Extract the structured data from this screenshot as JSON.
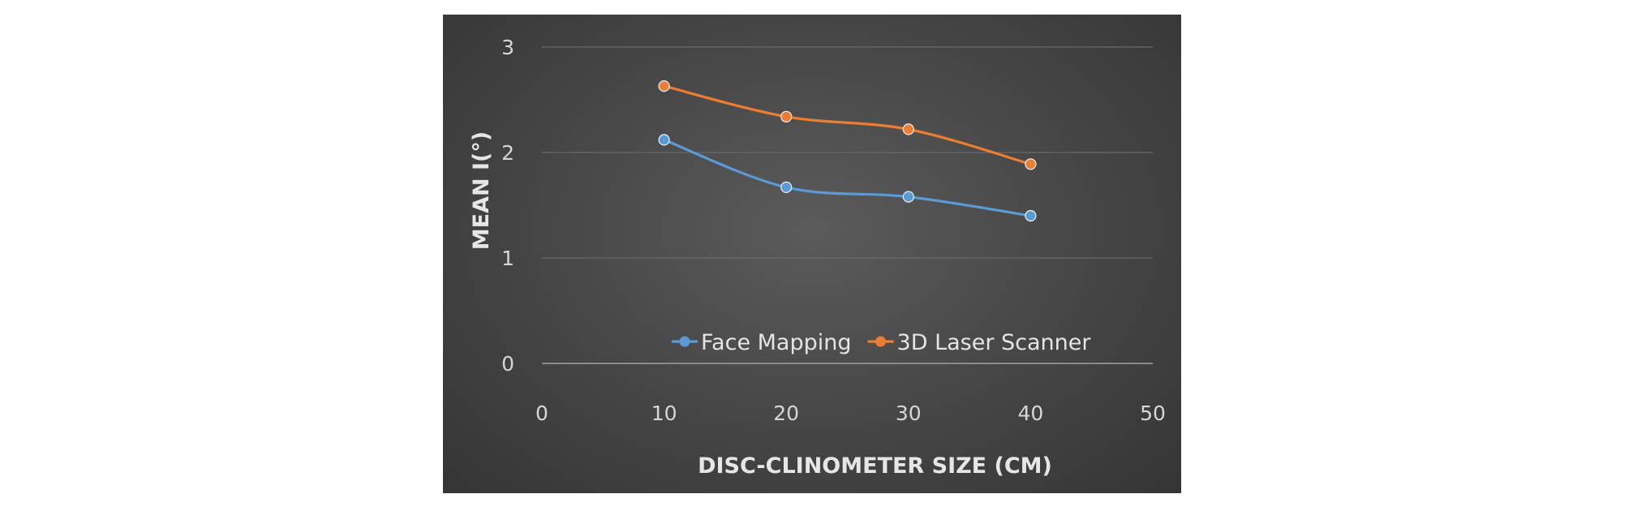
{
  "chart_data": {
    "type": "line",
    "title": "",
    "xlabel": "DISC-CLINOMETER SIZE (CM)",
    "ylabel": "MEAN I(°)",
    "xlim": [
      0,
      50
    ],
    "ylim": [
      0,
      3
    ],
    "xticks": [
      "0",
      "10",
      "20",
      "30",
      "40",
      "50"
    ],
    "yticks": [
      "0",
      "1",
      "2",
      "3"
    ],
    "grid": true,
    "legend_position": "bottom-inside",
    "x": [
      10,
      20,
      30,
      40
    ],
    "series": [
      {
        "name": "Face Mapping",
        "color": "#5b9bd5",
        "values": [
          2.12,
          1.67,
          1.58,
          1.4
        ]
      },
      {
        "name": "3D Laser Scanner",
        "color": "#ed7d31",
        "values": [
          2.63,
          2.34,
          2.22,
          1.89
        ]
      }
    ]
  }
}
